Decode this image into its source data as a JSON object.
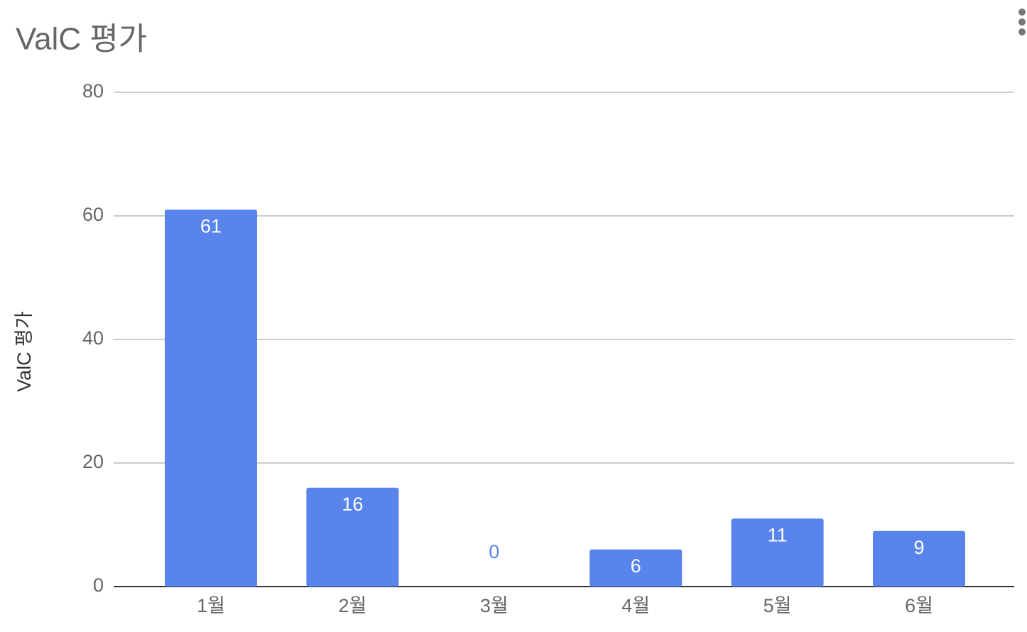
{
  "chart_data": {
    "type": "bar",
    "title": "ValC 평가",
    "y_label": "ValC 평가",
    "categories": [
      "1월",
      "2월",
      "3월",
      "4월",
      "5월",
      "6월"
    ],
    "values": [
      61,
      16,
      0,
      6,
      11,
      9
    ],
    "color": "#5884ec",
    "ylim": [
      0,
      80
    ],
    "yticks": [
      0,
      20,
      40,
      60,
      80
    ],
    "grid": true
  }
}
